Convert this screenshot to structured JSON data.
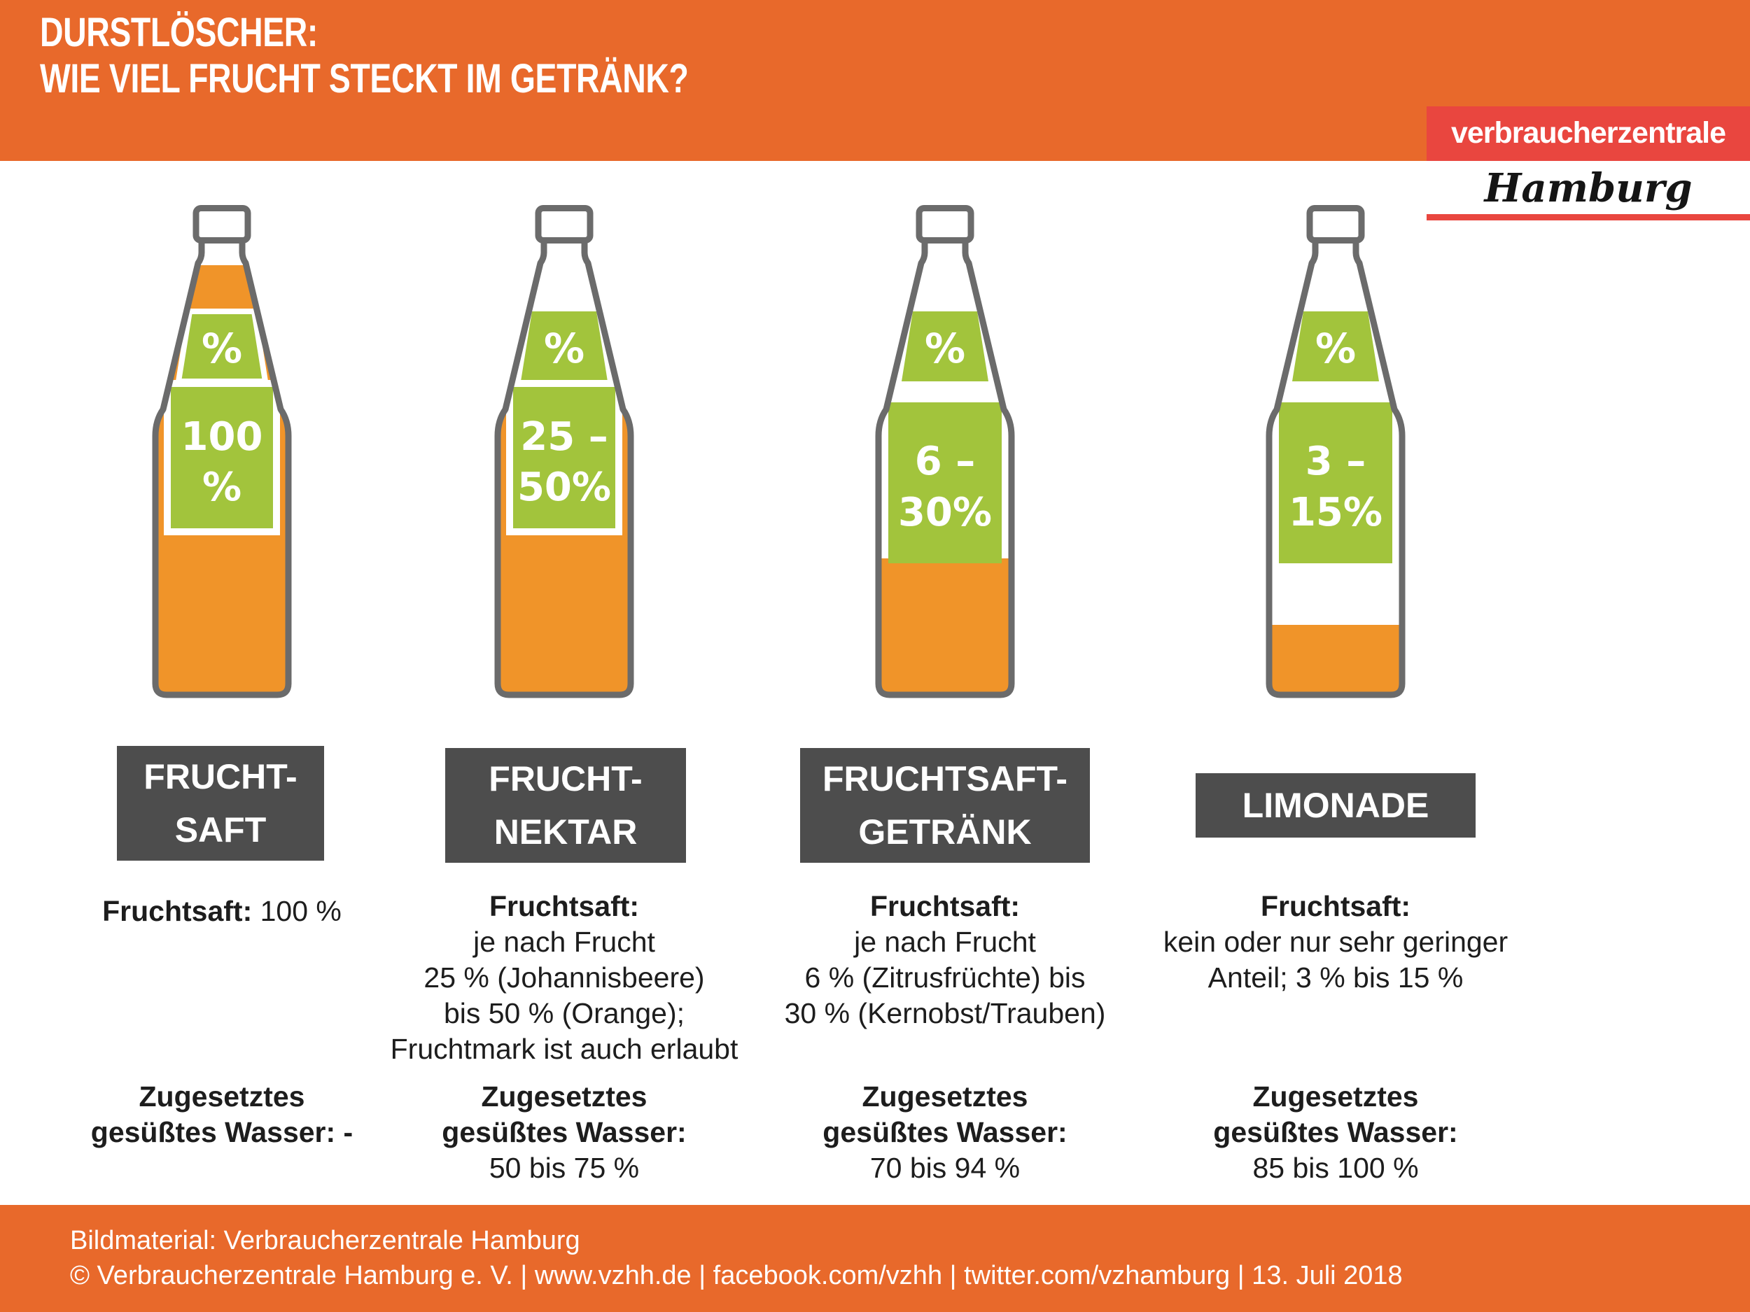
{
  "chart_data": {
    "type": "bar",
    "title": "DURSTLÖSCHER: WIE VIEL FRUCHT STECKT IM GETRÄNK?",
    "categories": [
      "Fruchtsaft",
      "Fruchtnektar",
      "Fruchtsaftgetränk",
      "Limonade"
    ],
    "series": [
      {
        "name": "Fruchtsaft-Anteil (%)",
        "values": [
          [
            100,
            100
          ],
          [
            25,
            50
          ],
          [
            6,
            30
          ],
          [
            3,
            15
          ]
        ]
      },
      {
        "name": "Zugesetztes gesüßtes Wasser (%)",
        "values": [
          [
            0,
            0
          ],
          [
            50,
            75
          ],
          [
            70,
            94
          ],
          [
            85,
            100
          ]
        ]
      }
    ],
    "unit": "%"
  },
  "header": {
    "title_line1": "DURSTLÖSCHER:",
    "title_line2": "WIE VIEL FRUCHT STECKT IM GETRÄNK?"
  },
  "logo": {
    "org": "verbraucherzentrale",
    "region": "Hamburg"
  },
  "colors": {
    "header_orange": "#E8692B",
    "footer_orange": "#E8692B",
    "bottle_fill_orange": "#F09429",
    "green": "#A2C43C",
    "label_box_gray": "#4D4D4D",
    "logo_red": "#E9463F",
    "bottle_outline_gray": "#6B6B6B",
    "text_black": "#1D1D1D"
  },
  "columns": [
    {
      "badge": "%",
      "box_lines": [
        "100",
        "%"
      ],
      "name_lines": [
        "FRUCHT-",
        "SAFT"
      ],
      "fruchtsaft_heading": "Fruchtsaft:",
      "fruchtsaft_inline": "100 %",
      "fruchtsaft_lines": [],
      "wasser_bold_lines": [
        "Zugesetztes",
        "gesüßtes Wasser: -"
      ],
      "wasser_value": "",
      "bottle": {
        "fill_top": 86
      }
    },
    {
      "badge": "%",
      "box_lines": [
        "25 –",
        "50%"
      ],
      "name_lines": [
        "FRUCHT-",
        "NEKTAR"
      ],
      "fruchtsaft_heading": "Fruchtsaft:",
      "fruchtsaft_inline": "",
      "fruchtsaft_lines": [
        "je nach Frucht",
        "25 % (Johannisbeere)",
        "bis 50 % (Orange);",
        "Fruchtmark ist auch erlaubt"
      ],
      "wasser_bold_lines": [
        "Zugesetztes",
        "gesüßtes Wasser:"
      ],
      "wasser_value": "50 bis 75 %",
      "bottle": {
        "fill_top": 272
      }
    },
    {
      "badge": "%",
      "box_lines": [
        "6 –",
        "30%"
      ],
      "name_lines": [
        "FRUCHTSAFT-",
        "GETRÄNK"
      ],
      "fruchtsaft_heading": "Fruchtsaft:",
      "fruchtsaft_inline": "",
      "fruchtsaft_lines": [
        "je nach Frucht",
        "6 % (Zitrusfrüchte) bis",
        "30 % (Kernobst/Trauben)"
      ],
      "wasser_bold_lines": [
        "Zugesetztes",
        "gesüßtes Wasser:"
      ],
      "wasser_value": "70 bis 94 %",
      "bottle": {
        "fill_top": 505
      }
    },
    {
      "badge": "%",
      "box_lines": [
        "3 –",
        "15%"
      ],
      "name_lines": [
        "LIMONADE"
      ],
      "fruchtsaft_heading": "Fruchtsaft:",
      "fruchtsaft_inline": "",
      "fruchtsaft_lines": [
        "kein oder nur sehr geringer",
        "Anteil; 3 % bis 15 %"
      ],
      "wasser_bold_lines": [
        "Zugesetztes",
        "gesüßtes Wasser:"
      ],
      "wasser_value": "85 bis 100 %",
      "bottle": {
        "fill_top": 600
      }
    }
  ],
  "footer": {
    "line1": "Bildmaterial: Verbraucherzentrale Hamburg",
    "line2": "© Verbraucherzentrale Hamburg e. V. | www.vzhh.de | facebook.com/vzhh | twitter.com/vzhamburg | 13. Juli 2018"
  }
}
